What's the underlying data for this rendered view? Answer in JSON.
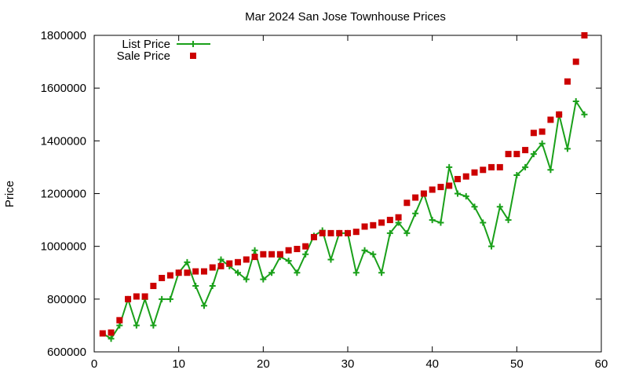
{
  "chart_data": {
    "type": "line",
    "title": "Mar 2024 San Jose Townhouse Prices",
    "xlabel": "",
    "ylabel": "Price",
    "xlim": [
      0,
      60
    ],
    "ylim": [
      600000,
      1800000
    ],
    "xticks": [
      0,
      10,
      20,
      30,
      40,
      50,
      60
    ],
    "yticks": [
      600000,
      800000,
      1000000,
      1200000,
      1400000,
      1600000,
      1800000
    ],
    "grid": false,
    "legend_position": "top-left",
    "series": [
      {
        "name": "List Price",
        "style": "line+plus",
        "color": "#1aa01a",
        "x": [
          1,
          2,
          3,
          4,
          5,
          6,
          7,
          8,
          9,
          10,
          11,
          12,
          13,
          14,
          15,
          16,
          17,
          18,
          19,
          20,
          21,
          22,
          23,
          24,
          25,
          26,
          27,
          28,
          29,
          30,
          31,
          32,
          33,
          34,
          35,
          36,
          37,
          38,
          39,
          40,
          41,
          42,
          43,
          44,
          45,
          46,
          47,
          48,
          49,
          50,
          51,
          52,
          53,
          54,
          55,
          56,
          57,
          58
        ],
        "y": [
          670000,
          650000,
          700000,
          800000,
          700000,
          800000,
          700000,
          800000,
          800000,
          900000,
          940000,
          850000,
          775000,
          850000,
          950000,
          925000,
          900000,
          875000,
          985000,
          875000,
          900000,
          960000,
          945000,
          900000,
          970000,
          1040000,
          1060000,
          950000,
          1050000,
          1050000,
          900000,
          985000,
          970000,
          900000,
          1050000,
          1090000,
          1050000,
          1125000,
          1200000,
          1100000,
          1090000,
          1300000,
          1200000,
          1190000,
          1150000,
          1090000,
          1000000,
          1150000,
          1100000,
          1270000,
          1300000,
          1350000,
          1390000,
          1290000,
          1500000,
          1370000,
          1550000,
          1500000
        ]
      },
      {
        "name": "Sale Price",
        "style": "square-markers",
        "color": "#cc0000",
        "x": [
          1,
          2,
          3,
          4,
          5,
          6,
          7,
          8,
          9,
          10,
          11,
          12,
          13,
          14,
          15,
          16,
          17,
          18,
          19,
          20,
          21,
          22,
          23,
          24,
          25,
          26,
          27,
          28,
          29,
          30,
          31,
          32,
          33,
          34,
          35,
          36,
          37,
          38,
          39,
          40,
          41,
          42,
          43,
          44,
          45,
          46,
          47,
          48,
          49,
          50,
          51,
          52,
          53,
          54,
          55,
          56,
          57,
          58
        ],
        "y": [
          670000,
          673000,
          720000,
          800000,
          810000,
          810000,
          850000,
          880000,
          890000,
          900000,
          900000,
          905000,
          905000,
          920000,
          925000,
          935000,
          940000,
          950000,
          960000,
          970000,
          970000,
          970000,
          985000,
          990000,
          1000000,
          1035000,
          1050000,
          1050000,
          1050000,
          1050000,
          1055000,
          1075000,
          1080000,
          1090000,
          1100000,
          1110000,
          1165000,
          1185000,
          1200000,
          1215000,
          1225000,
          1230000,
          1255000,
          1265000,
          1280000,
          1290000,
          1300000,
          1300000,
          1350000,
          1350000,
          1365000,
          1430000,
          1435000,
          1480000,
          1500000,
          1625000,
          1700000,
          1800000
        ]
      }
    ]
  }
}
